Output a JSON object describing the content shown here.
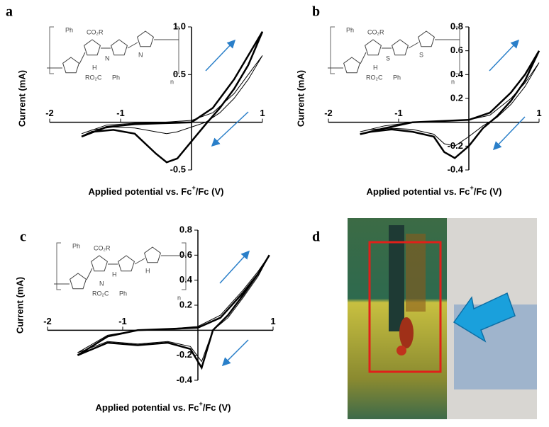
{
  "chart_data": [
    {
      "type": "line",
      "panel_label": "a",
      "ylabel": "Current (mA)",
      "xlabel": "Applied potential vs. Fc",
      "xlabel_sup": "+",
      "xlabel_end": "/Fc (V)",
      "structure_labels": [
        "Ph",
        "CO₂R",
        "N",
        "H",
        "RO₂C",
        "Ph",
        "N",
        "n"
      ],
      "xlim": [
        -2,
        1
      ],
      "ylim": [
        -0.5,
        1
      ],
      "xticks": [
        -2,
        -1,
        1
      ],
      "yticks": [
        -0.5,
        0.5,
        {
          "value": 1,
          "label": "1.0"
        }
      ],
      "x": [
        -1.55,
        -1.2,
        -0.8,
        -0.4,
        0,
        0.3,
        0.6,
        0.8,
        1.0,
        0.8,
        0.6,
        0.4,
        0.2,
        0,
        -0.2,
        -0.35,
        -0.5,
        -0.8,
        -1.1,
        -1.4,
        -1.55
      ],
      "series": [
        {
          "color": "#000000",
          "values": [
            -0.15,
            -0.05,
            -0.02,
            -0.01,
            0.0,
            0.15,
            0.45,
            0.7,
            0.95,
            0.6,
            0.35,
            0.15,
            -0.02,
            -0.2,
            -0.38,
            -0.42,
            -0.33,
            -0.12,
            -0.08,
            -0.1,
            -0.15
          ]
        },
        {
          "color": "#000000",
          "values": [
            -0.12,
            -0.03,
            -0.01,
            0,
            0.02,
            0.1,
            0.3,
            0.5,
            0.7,
            0.45,
            0.25,
            0.1,
            0.0,
            -0.05,
            -0.1,
            -0.12,
            -0.1,
            -0.06,
            -0.05,
            -0.08,
            -0.12
          ]
        }
      ]
    },
    {
      "type": "line",
      "panel_label": "b",
      "ylabel": "Current (mA)",
      "xlabel": "Applied potential vs. Fc",
      "xlabel_sup": "+",
      "xlabel_end": "/Fc (V)",
      "structure_labels": [
        "Ph",
        "CO₂R",
        "S",
        "H",
        "RO₂C",
        "Ph",
        "S",
        "n"
      ],
      "xlim": [
        -2,
        1
      ],
      "ylim": [
        -0.4,
        0.8
      ],
      "xticks": [
        -2,
        -1,
        1
      ],
      "yticks": [
        -0.4,
        -0.2,
        0.2,
        0.4,
        0.6,
        0.8
      ],
      "x": [
        -1.55,
        -1.2,
        -0.8,
        -0.4,
        0,
        0.3,
        0.6,
        0.8,
        1.0,
        0.8,
        0.6,
        0.4,
        0.2,
        0,
        -0.2,
        -0.35,
        -0.5,
        -0.8,
        -1.1,
        -1.4,
        -1.55
      ],
      "series": [
        {
          "color": "#000000",
          "values": [
            -0.1,
            -0.05,
            0,
            0.01,
            0.02,
            0.08,
            0.25,
            0.4,
            0.6,
            0.35,
            0.18,
            0.05,
            -0.05,
            -0.2,
            -0.3,
            -0.25,
            -0.12,
            -0.08,
            -0.06,
            -0.08,
            -0.1
          ]
        },
        {
          "color": "#000000",
          "values": [
            -0.08,
            -0.03,
            0,
            0.01,
            0.02,
            0.06,
            0.2,
            0.33,
            0.5,
            0.3,
            0.15,
            0.04,
            -0.03,
            -0.12,
            -0.2,
            -0.18,
            -0.1,
            -0.06,
            -0.05,
            -0.06,
            -0.08
          ]
        }
      ]
    },
    {
      "type": "line",
      "panel_label": "c",
      "ylabel": "Current (mA)",
      "xlabel": "Applied potential vs. Fc",
      "xlabel_sup": "+",
      "xlabel_end": "/Fc (V)",
      "structure_labels": [
        "Ph",
        "CO₂R",
        "H",
        "N",
        "RO₂C",
        "Ph",
        "H",
        "n"
      ],
      "xlim": [
        -2,
        1
      ],
      "ylim": [
        -0.4,
        0.8
      ],
      "xticks": [
        -2,
        -1,
        1
      ],
      "yticks": [
        -0.4,
        -0.2,
        0.2,
        0.4,
        0.6,
        0.8
      ],
      "x": [
        -1.6,
        -1.2,
        -0.8,
        -0.4,
        0,
        0.3,
        0.6,
        0.8,
        0.95,
        0.8,
        0.6,
        0.4,
        0.2,
        0.05,
        -0.1,
        -0.4,
        -0.8,
        -1.2,
        -1.6
      ],
      "series": [
        {
          "color": "#000000",
          "values": [
            -0.2,
            -0.05,
            0,
            0.01,
            0.02,
            0.1,
            0.3,
            0.45,
            0.6,
            0.45,
            0.28,
            0.12,
            0.0,
            -0.3,
            -0.15,
            -0.1,
            -0.12,
            -0.1,
            -0.2
          ]
        },
        {
          "color": "#000000",
          "values": [
            -0.18,
            -0.04,
            0,
            0.01,
            0.03,
            0.12,
            0.32,
            0.47,
            0.6,
            0.43,
            0.26,
            0.1,
            0.0,
            -0.25,
            -0.13,
            -0.09,
            -0.11,
            -0.09,
            -0.18
          ]
        }
      ]
    }
  ],
  "panel_d": {
    "label": "d"
  }
}
